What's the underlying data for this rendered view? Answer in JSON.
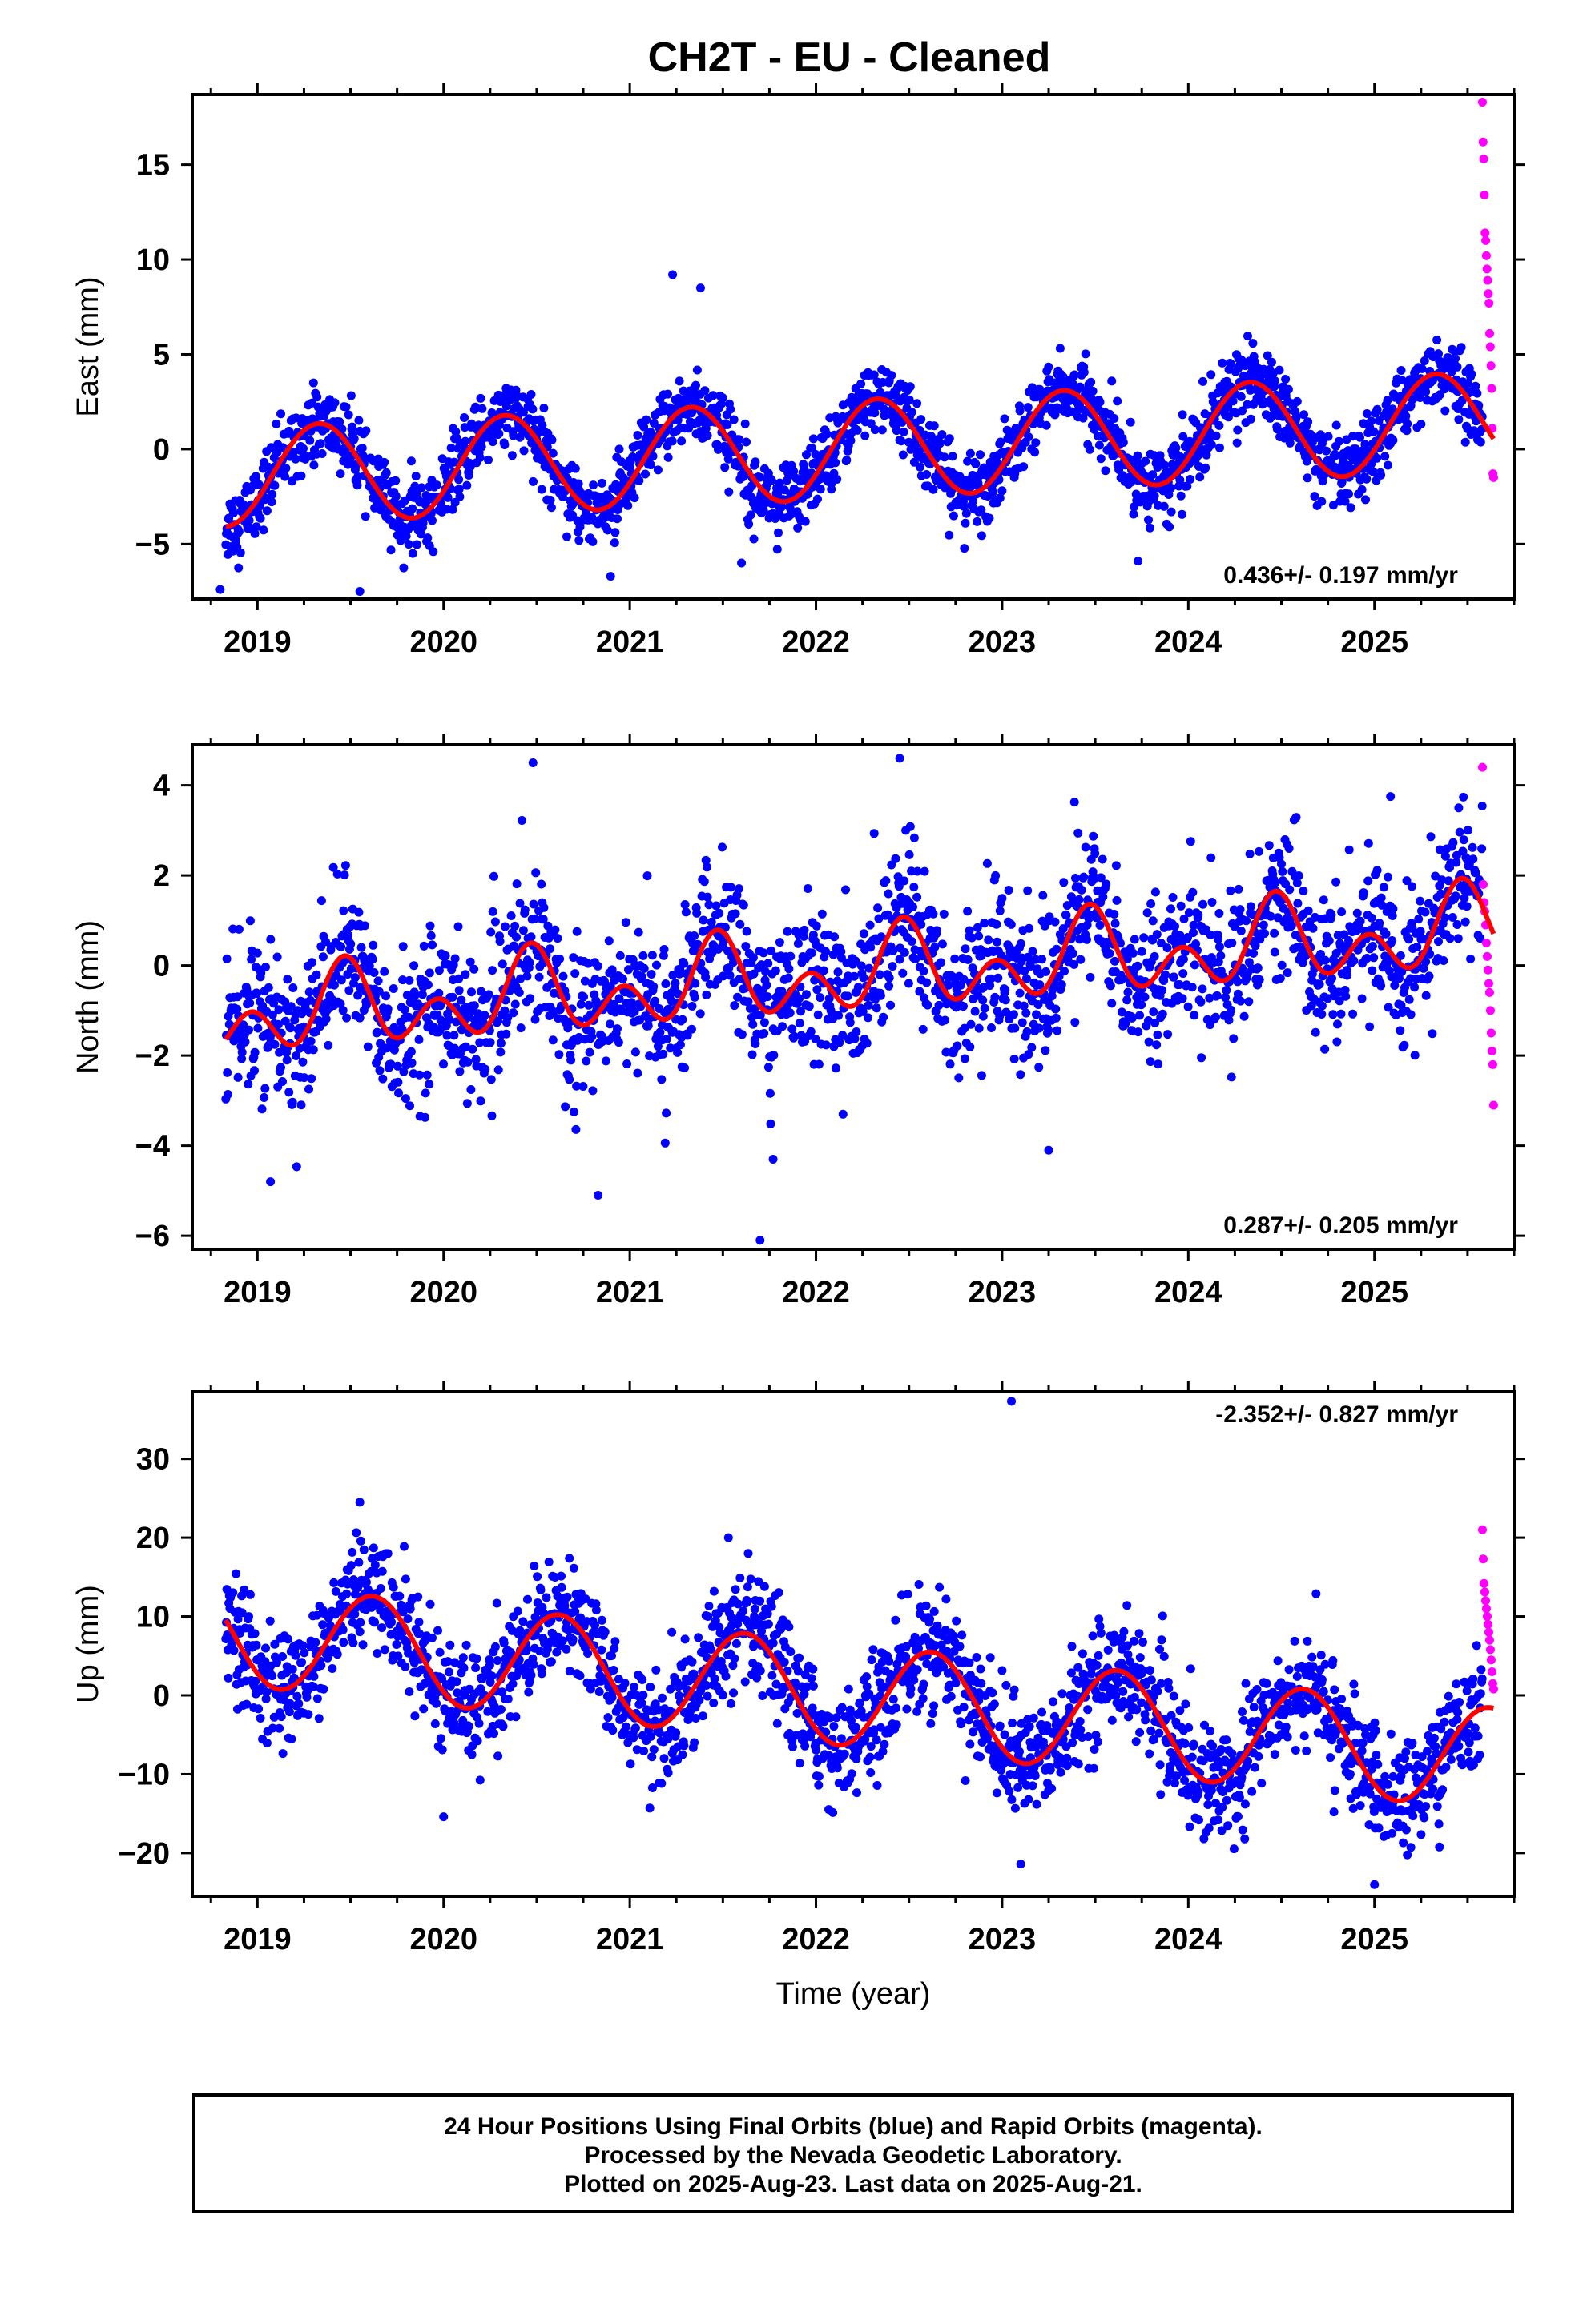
{
  "title": "CH2T  - EU - Cleaned",
  "colors": {
    "final": "#0000ff",
    "rapid": "#ff00ff",
    "model": "#ff0000",
    "frame": "#000000"
  },
  "caption": {
    "line1": "24 Hour Positions Using Final Orbits (blue) and Rapid Orbits (magenta).",
    "line2": "Processed by the Nevada Geodetic Laboratory.",
    "line3": "Plotted on 2025-Aug-23. Last data on 2025-Aug-21."
  },
  "chart_data": [
    {
      "type": "scatter",
      "ylabel": "East (mm)",
      "xlabel": "",
      "xlim": [
        2018.65,
        2025.75
      ],
      "ylim": [
        -7.9,
        18.7
      ],
      "x_ticks": [
        2019,
        2020,
        2021,
        2022,
        2023,
        2024,
        2025
      ],
      "y_ticks": [
        -5,
        0,
        5,
        10,
        15
      ],
      "rate_label": "0.436+/- 0.197 mm/yr",
      "rate_position": "bottom-right",
      "trend": {
        "rate": 0.436,
        "offset": 0.0,
        "ref_year": 2022.2
      },
      "seasonal": {
        "annual_amp": 2.6,
        "annual_peak": 2019.33,
        "semi_amp": 0.0,
        "semi_peak": 0.0
      },
      "noise_sd": 1.1,
      "series": [
        {
          "name": "Final Orbits",
          "color": "#0000ff",
          "model_notes": "daily positions, 2018.83 to 2025.58",
          "start": 2018.83,
          "end": 2025.58
        },
        {
          "name": "Rapid Orbits",
          "color": "#ff00ff",
          "start": 2025.58,
          "end": 2025.64,
          "values": [
            18.3,
            16.2,
            15.3,
            13.4,
            11.4,
            11.0,
            10.2,
            9.5,
            8.9,
            8.2,
            7.7,
            6.1,
            5.4,
            4.4,
            3.2,
            1.1,
            -1.3,
            -1.5
          ]
        }
      ],
      "outliers": [
        [
          2021.23,
          9.2
        ],
        [
          2021.38,
          8.5
        ],
        [
          2019.55,
          -7.5
        ],
        [
          2018.8,
          -7.4
        ],
        [
          2023.73,
          -5.9
        ],
        [
          2021.6,
          -6.0
        ]
      ]
    },
    {
      "type": "scatter",
      "ylabel": "North (mm)",
      "xlabel": "",
      "xlim": [
        2018.65,
        2025.75
      ],
      "ylim": [
        -6.3,
        4.9
      ],
      "x_ticks": [
        2019,
        2020,
        2021,
        2022,
        2023,
        2024,
        2025
      ],
      "y_ticks": [
        -6,
        -4,
        -2,
        0,
        2,
        4
      ],
      "rate_label": "0.287+/- 0.205 mm/yr",
      "rate_position": "bottom-right",
      "trend": {
        "rate": 0.287,
        "offset": -0.2,
        "ref_year": 2022.2
      },
      "seasonal": {
        "annual_amp": 0.55,
        "annual_peak": 2019.47,
        "semi_amp": 0.65,
        "semi_peak": 2019.47
      },
      "noise_sd": 0.95,
      "series": [
        {
          "name": "Final Orbits",
          "color": "#0000ff",
          "start": 2018.83,
          "end": 2025.58
        },
        {
          "name": "Rapid Orbits",
          "color": "#ff00ff",
          "start": 2025.58,
          "end": 2025.64,
          "values": [
            4.4,
            1.8,
            1.4,
            1.2,
            0.9,
            0.5,
            0.2,
            -0.1,
            -0.4,
            -0.6,
            -1.0,
            -1.5,
            -1.9,
            -2.2,
            -3.1
          ]
        }
      ],
      "outliers": [
        [
          2022.45,
          4.6
        ],
        [
          2020.48,
          4.5
        ],
        [
          2021.7,
          -6.1
        ],
        [
          2020.83,
          -5.1
        ],
        [
          2021.77,
          -4.3
        ],
        [
          2019.07,
          -4.8
        ],
        [
          2023.25,
          -4.1
        ]
      ]
    },
    {
      "type": "scatter",
      "ylabel": "Up (mm)",
      "xlabel": "Time (year)",
      "xlim": [
        2018.65,
        2025.75
      ],
      "ylim": [
        -25.5,
        38.5
      ],
      "x_ticks": [
        2019,
        2020,
        2021,
        2022,
        2023,
        2024,
        2025
      ],
      "y_ticks": [
        -20,
        -10,
        0,
        10,
        20,
        30
      ],
      "rate_label": "-2.352+/- 0.827 mm/yr",
      "rate_position": "top-right",
      "trend": {
        "rate": -2.352,
        "offset": 0.0,
        "ref_year": 2022.2
      },
      "seasonal": {
        "annual_amp": 6.5,
        "annual_peak": 2019.62,
        "semi_amp": 0.0,
        "semi_peak": 0.0
      },
      "noise_sd": 4.2,
      "series": [
        {
          "name": "Final Orbits",
          "color": "#0000ff",
          "start": 2018.83,
          "end": 2025.58
        },
        {
          "name": "Rapid Orbits",
          "color": "#ff00ff",
          "start": 2025.58,
          "end": 2025.64,
          "values": [
            21.0,
            17.3,
            14.2,
            13.1,
            12.0,
            11.0,
            10.0,
            9.0,
            8.0,
            7.0,
            5.8,
            4.5,
            3.0,
            1.5,
            0.8
          ]
        }
      ],
      "outliers": [
        [
          2023.05,
          37.3
        ],
        [
          2019.55,
          24.5
        ],
        [
          2021.53,
          20.0
        ],
        [
          2023.1,
          -21.4
        ],
        [
          2025.0,
          -24.0
        ],
        [
          2020.0,
          -15.4
        ]
      ]
    }
  ]
}
